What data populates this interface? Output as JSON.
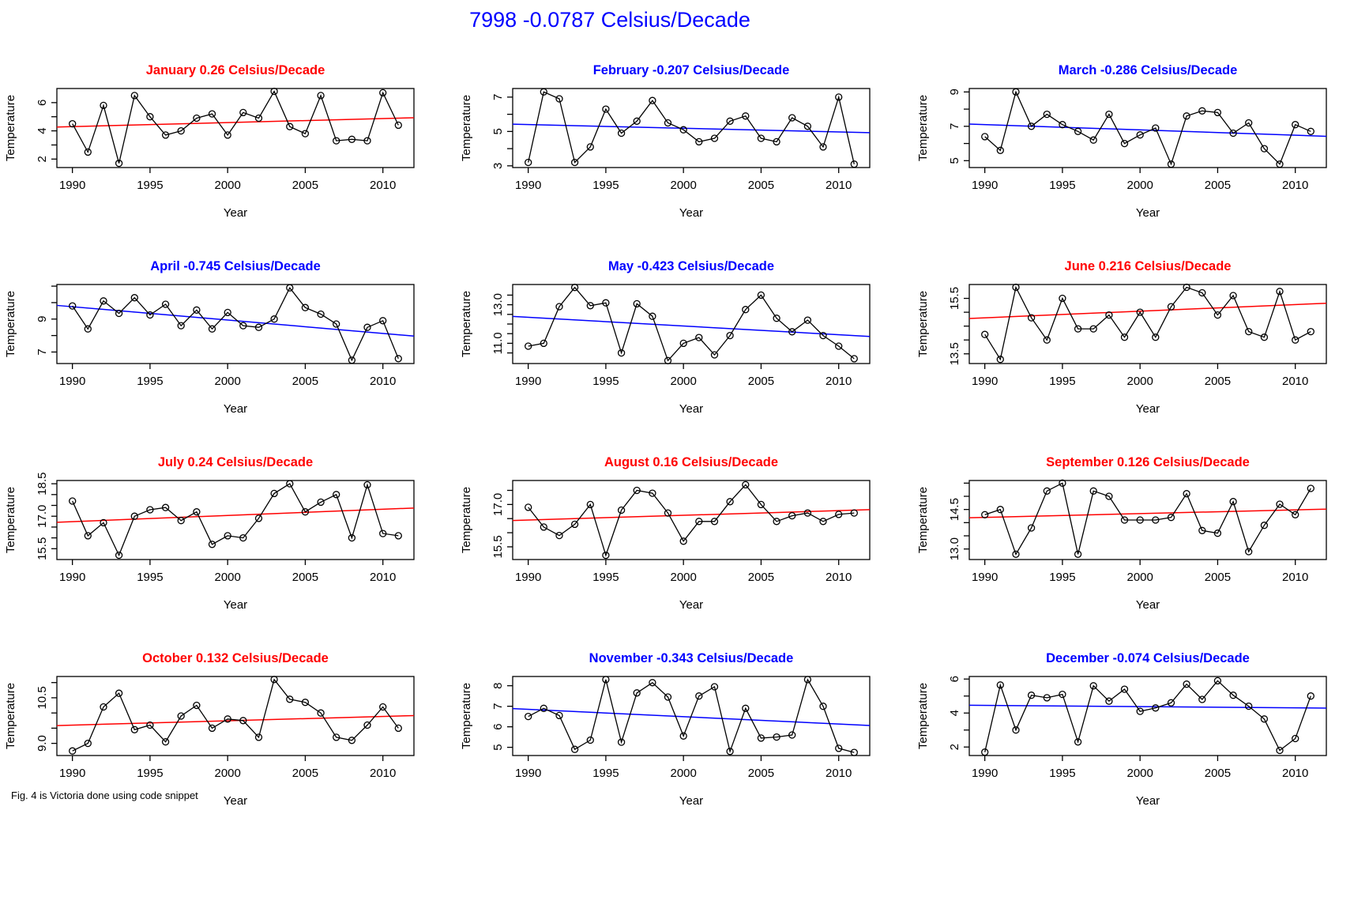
{
  "main_title": "7998 -0.0787 Celsius/Decade",
  "footer_note": "Fig. 4 is Victoria done using code snippet",
  "colors": {
    "main_title": "#0000ff",
    "positive_trend": "#ff0000",
    "negative_trend": "#0000ff",
    "series_line": "#000000",
    "plot_border": "#000000",
    "background": "#ffffff"
  },
  "axis": {
    "x_label": "Year",
    "y_label": "Temperature",
    "x_ticks": [
      1990,
      1995,
      2000,
      2005,
      2010
    ],
    "years": [
      1990,
      1991,
      1992,
      1993,
      1994,
      1995,
      1996,
      1997,
      1998,
      1999,
      2000,
      2001,
      2002,
      2003,
      2004,
      2005,
      2006,
      2007,
      2008,
      2009,
      2010,
      2011
    ]
  },
  "chart_data": [
    {
      "type": "line",
      "month": "January",
      "title": "January 0.26 Celsius/Decade",
      "slope_per_decade": 0.26,
      "color": "#ff0000",
      "xlabel": "Year",
      "ylabel": "Temperature",
      "ylim": [
        1.4,
        7.0
      ],
      "ytick_values": [
        2,
        3,
        4,
        5,
        6
      ],
      "ytick_labels": [
        "2",
        "",
        "4",
        "",
        "6"
      ],
      "values": [
        4.5,
        2.5,
        5.8,
        1.7,
        6.5,
        5.0,
        3.7,
        4.0,
        4.9,
        5.2,
        3.7,
        5.3,
        4.9,
        6.8,
        4.3,
        3.8,
        6.5,
        3.3,
        3.4,
        3.3,
        6.7,
        4.4
      ],
      "trend_start": 4.3,
      "trend_end": 4.9
    },
    {
      "type": "line",
      "month": "February",
      "title": "February -0.207 Celsius/Decade",
      "slope_per_decade": -0.207,
      "color": "#0000ff",
      "xlabel": "Year",
      "ylabel": "Temperature",
      "ylim": [
        2.9,
        7.5
      ],
      "ytick_values": [
        3,
        4,
        5,
        6,
        7
      ],
      "ytick_labels": [
        "3",
        "",
        "5",
        "",
        "7"
      ],
      "values": [
        3.2,
        7.3,
        6.9,
        3.2,
        4.1,
        6.3,
        4.9,
        5.6,
        6.8,
        5.5,
        5.1,
        4.4,
        4.6,
        5.6,
        5.9,
        4.6,
        4.4,
        5.8,
        5.3,
        4.1,
        7.0,
        3.1
      ],
      "trend_start": 5.4,
      "trend_end": 4.95
    },
    {
      "type": "line",
      "month": "March",
      "title": "March -0.286 Celsius/Decade",
      "slope_per_decade": -0.286,
      "color": "#0000ff",
      "xlabel": "Year",
      "ylabel": "Temperature",
      "ylim": [
        4.6,
        9.2
      ],
      "ytick_values": [
        5,
        6,
        7,
        8,
        9
      ],
      "ytick_labels": [
        "5",
        "",
        "7",
        "",
        "9"
      ],
      "values": [
        6.4,
        5.6,
        9.0,
        7.0,
        7.7,
        7.1,
        6.7,
        6.2,
        7.7,
        6.0,
        6.5,
        6.9,
        4.8,
        7.6,
        7.9,
        7.8,
        6.6,
        7.2,
        5.7,
        4.8,
        7.1,
        6.7
      ],
      "trend_start": 7.1,
      "trend_end": 6.45
    },
    {
      "type": "line",
      "month": "April",
      "title": "April -0.745 Celsius/Decade",
      "slope_per_decade": -0.745,
      "color": "#0000ff",
      "xlabel": "Year",
      "ylabel": "Temperature",
      "ylim": [
        6.3,
        11.1
      ],
      "ytick_values": [
        7,
        8,
        9,
        10,
        11
      ],
      "ytick_labels": [
        "7",
        "",
        "9",
        "",
        ""
      ],
      "values": [
        9.8,
        8.4,
        10.1,
        9.35,
        10.3,
        9.25,
        9.9,
        8.6,
        9.55,
        8.4,
        9.4,
        8.6,
        8.5,
        9.0,
        10.9,
        9.7,
        9.3,
        8.7,
        6.5,
        8.5,
        8.9,
        6.6
      ],
      "trend_start": 9.75,
      "trend_end": 8.05
    },
    {
      "type": "line",
      "month": "May",
      "title": "May -0.423 Celsius/Decade",
      "slope_per_decade": -0.423,
      "color": "#0000ff",
      "xlabel": "Year",
      "ylabel": "Temperature",
      "ylim": [
        9.95,
        14.05
      ],
      "ytick_values": [
        10.5,
        11,
        11.5,
        12,
        12.5,
        13,
        13.5
      ],
      "ytick_labels": [
        "",
        "11.0",
        "",
        "",
        "",
        "13.0",
        ""
      ],
      "values": [
        10.85,
        11.0,
        12.9,
        13.9,
        12.95,
        13.1,
        10.5,
        13.05,
        12.4,
        10.1,
        11.0,
        11.3,
        10.4,
        11.4,
        12.75,
        13.5,
        12.3,
        11.6,
        12.2,
        11.4,
        10.85,
        10.2
      ],
      "trend_start": 12.35,
      "trend_end": 11.4
    },
    {
      "type": "line",
      "month": "June",
      "title": "June 0.216 Celsius/Decade",
      "slope_per_decade": 0.216,
      "color": "#ff0000",
      "xlabel": "Year",
      "ylabel": "Temperature",
      "ylim": [
        13.15,
        16.0
      ],
      "ytick_values": [
        13.5,
        14,
        14.5,
        15,
        15.5
      ],
      "ytick_labels": [
        "13.5",
        "",
        "",
        "",
        "15.5"
      ],
      "values": [
        14.2,
        13.3,
        15.9,
        14.8,
        14.0,
        15.5,
        14.4,
        14.4,
        14.9,
        14.1,
        15.0,
        14.1,
        15.2,
        15.9,
        15.7,
        14.9,
        15.6,
        14.3,
        14.1,
        15.75,
        14.0,
        14.3
      ],
      "trend_start": 14.8,
      "trend_end": 15.3
    },
    {
      "type": "line",
      "month": "July",
      "title": "July 0.24 Celsius/Decade",
      "slope_per_decade": 0.24,
      "color": "#ff0000",
      "xlabel": "Year",
      "ylabel": "Temperature",
      "ylim": [
        15.0,
        18.65
      ],
      "ytick_values": [
        15.5,
        16,
        16.5,
        17,
        17.5,
        18,
        18.5
      ],
      "ytick_labels": [
        "15.5",
        "",
        "",
        "17.0",
        "",
        "",
        "18.5"
      ],
      "values": [
        17.7,
        16.1,
        16.7,
        15.2,
        17.0,
        17.3,
        17.4,
        16.8,
        17.2,
        15.7,
        16.1,
        16.0,
        16.9,
        18.05,
        18.5,
        17.2,
        17.65,
        18.0,
        16.0,
        18.45,
        16.2,
        16.1
      ],
      "trend_start": 16.75,
      "trend_end": 17.35
    },
    {
      "type": "line",
      "month": "August",
      "title": "August 0.16 Celsius/Decade",
      "slope_per_decade": 0.16,
      "color": "#ff0000",
      "xlabel": "Year",
      "ylabel": "Temperature",
      "ylim": [
        15.05,
        17.85
      ],
      "ytick_values": [
        15.5,
        16,
        16.5,
        17,
        17.5
      ],
      "ytick_labels": [
        "15.5",
        "",
        "",
        "17.0",
        ""
      ],
      "values": [
        16.9,
        16.2,
        15.9,
        16.3,
        17.0,
        15.2,
        16.8,
        17.5,
        17.4,
        16.7,
        15.7,
        16.4,
        16.4,
        17.1,
        17.7,
        17.0,
        16.4,
        16.6,
        16.7,
        16.4,
        16.65,
        16.7
      ],
      "trend_start": 16.45,
      "trend_end": 16.8
    },
    {
      "type": "line",
      "month": "September",
      "title": "September 0.126 Celsius/Decade",
      "slope_per_decade": 0.126,
      "color": "#ff0000",
      "xlabel": "Year",
      "ylabel": "Temperature",
      "ylim": [
        12.6,
        15.6
      ],
      "ytick_values": [
        13,
        13.5,
        14,
        14.5,
        15,
        15.5
      ],
      "ytick_labels": [
        "13.0",
        "",
        "",
        "14.5",
        "",
        ""
      ],
      "values": [
        14.3,
        14.5,
        12.8,
        13.8,
        15.2,
        15.5,
        12.8,
        15.2,
        15.0,
        14.1,
        14.1,
        14.1,
        14.2,
        15.1,
        13.7,
        13.6,
        14.8,
        12.9,
        13.9,
        14.7,
        14.3,
        15.3
      ],
      "trend_start": 14.2,
      "trend_end": 14.5
    },
    {
      "type": "line",
      "month": "October",
      "title": "October 0.132 Celsius/Decade",
      "slope_per_decade": 0.132,
      "color": "#ff0000",
      "xlabel": "Year",
      "ylabel": "Temperature",
      "ylim": [
        8.6,
        11.2
      ],
      "ytick_values": [
        9,
        9.5,
        10,
        10.5,
        11
      ],
      "ytick_labels": [
        "9.0",
        "",
        "",
        "10.5",
        ""
      ],
      "values": [
        8.75,
        9.0,
        10.2,
        10.65,
        9.45,
        9.6,
        9.05,
        9.9,
        10.25,
        9.5,
        9.8,
        9.75,
        9.2,
        11.1,
        10.45,
        10.35,
        10.0,
        9.2,
        9.1,
        9.6,
        10.2,
        9.5
      ],
      "trend_start": 9.6,
      "trend_end": 9.9
    },
    {
      "type": "line",
      "month": "November",
      "title": "November -0.343 Celsius/Decade",
      "slope_per_decade": -0.343,
      "color": "#0000ff",
      "xlabel": "Year",
      "ylabel": "Temperature",
      "ylim": [
        4.6,
        8.45
      ],
      "ytick_values": [
        5,
        6,
        7,
        8
      ],
      "ytick_labels": [
        "5",
        "6",
        "7",
        "8"
      ],
      "values": [
        6.5,
        6.9,
        6.55,
        4.9,
        5.35,
        8.3,
        5.25,
        7.65,
        8.15,
        7.45,
        5.55,
        7.5,
        7.95,
        4.8,
        6.9,
        5.45,
        5.5,
        5.6,
        8.3,
        7.0,
        4.95,
        4.75
      ],
      "trend_start": 6.85,
      "trend_end": 6.1
    },
    {
      "type": "line",
      "month": "December",
      "title": "December -0.074 Celsius/Decade",
      "slope_per_decade": -0.074,
      "color": "#0000ff",
      "xlabel": "Year",
      "ylabel": "Temperature",
      "ylim": [
        1.5,
        6.15
      ],
      "ytick_values": [
        2,
        3,
        4,
        5,
        6
      ],
      "ytick_labels": [
        "2",
        "",
        "4",
        "",
        "6"
      ],
      "values": [
        1.7,
        5.65,
        3.0,
        5.05,
        4.9,
        5.1,
        2.3,
        5.6,
        4.7,
        5.4,
        4.1,
        4.3,
        4.6,
        5.7,
        4.8,
        5.9,
        5.05,
        4.4,
        3.65,
        1.8,
        2.5,
        5.0
      ],
      "trend_start": 4.45,
      "trend_end": 4.3
    }
  ]
}
